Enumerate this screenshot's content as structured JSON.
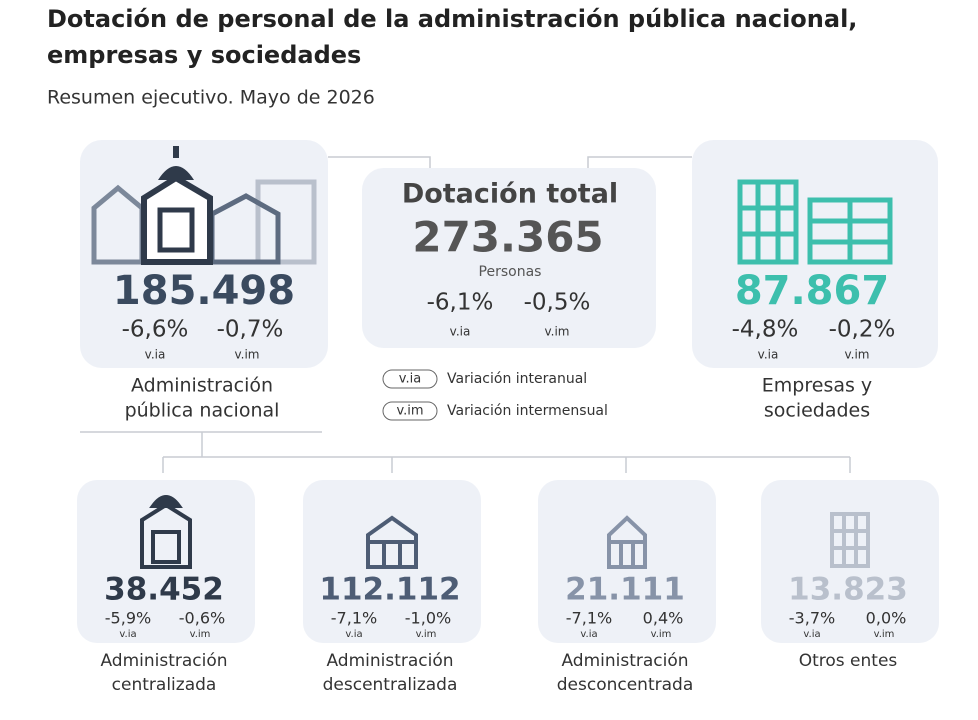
{
  "header": {
    "title_lines": [
      "Dotación de personal de la administración pública nacional,",
      "empresas y sociedades"
    ],
    "subtitle": "Resumen ejecutivo. Mayo de 2026"
  },
  "total": {
    "label": "Dotación total",
    "value": "273.365",
    "unit": "Personas",
    "via": "-6,1%",
    "via_label": "v.ia",
    "vim": "-0,5%",
    "vim_label": "v.im"
  },
  "apn": {
    "value": "185.498",
    "via": "-6,6%",
    "via_label": "v.ia",
    "vim": "-0,7%",
    "vim_label": "v.im",
    "name_lines": [
      "Administración",
      "pública nacional"
    ]
  },
  "empresas": {
    "value": "87.867",
    "via": "-4,8%",
    "via_label": "v.ia",
    "vim": "-0,2%",
    "vim_label": "v.im",
    "name_lines": [
      "Empresas y",
      "sociedades"
    ]
  },
  "legend": [
    {
      "abbr": "v.ia",
      "text": "Variación interanual"
    },
    {
      "abbr": "v.im",
      "text": "Variación intermensual"
    }
  ],
  "sub": [
    {
      "value": "38.452",
      "via": "-5,9%",
      "via_label": "v.ia",
      "vim": "-0,6%",
      "vim_label": "v.im",
      "name_lines": [
        "Administración",
        "centralizada"
      ]
    },
    {
      "value": "112.112",
      "via": "-7,1%",
      "via_label": "v.ia",
      "vim": "-1,0%",
      "vim_label": "v.im",
      "name_lines": [
        "Administración",
        "descentralizada"
      ]
    },
    {
      "value": "21.111",
      "via": "-7,1%",
      "via_label": "v.ia",
      "vim": "0,4%",
      "vim_label": "v.im",
      "name_lines": [
        "Administración",
        "desconcentrada"
      ]
    },
    {
      "value": "13.823",
      "via": "-3,7%",
      "via_label": "v.ia",
      "vim": "0,0%",
      "vim_label": "v.im",
      "name_lines": [
        "Otros entes"
      ]
    }
  ]
}
